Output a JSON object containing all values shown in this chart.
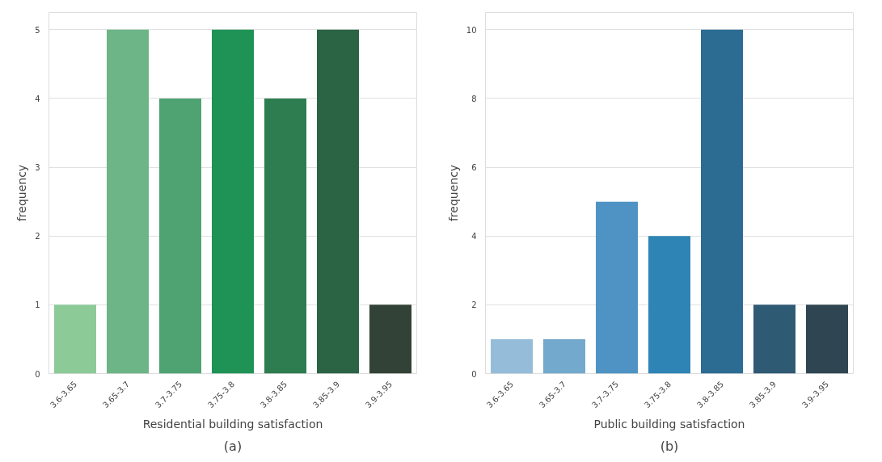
{
  "chart_data": [
    {
      "type": "bar",
      "xlabel": "Residential building satisfaction",
      "ylabel": "frequency",
      "categories": [
        "3.6-3.65",
        "3.65-3.7",
        "3.7-3.75",
        "3.75-3.8",
        "3.8-3.85",
        "3.85-3.9",
        "3.9-3.95"
      ],
      "values": [
        1,
        5,
        4,
        5,
        4,
        5,
        1
      ],
      "colors": [
        "#8ccb98",
        "#6db486",
        "#4fa271",
        "#1f9255",
        "#2e7d50",
        "#2a6445",
        "#334236"
      ],
      "ylim": [
        0,
        5.25
      ],
      "yticks": [
        0,
        1,
        2,
        3,
        4,
        5
      ],
      "grid": "y",
      "annotations": [
        "(a)"
      ]
    },
    {
      "type": "bar",
      "xlabel": "Public building satisfaction",
      "ylabel": "frequency",
      "categories": [
        "3.6-3.65",
        "3.65-3.7",
        "3.7-3.75",
        "3.75-3.8",
        "3.8-3.85",
        "3.85-3.9",
        "3.9-3.95"
      ],
      "values": [
        1,
        1,
        5,
        4,
        10,
        2,
        2
      ],
      "colors": [
        "#95bdd9",
        "#73a9cc",
        "#4e93c3",
        "#2e84b5",
        "#2c6c93",
        "#2f5a74",
        "#2f4652"
      ],
      "ylim": [
        0,
        10.5
      ],
      "yticks": [
        0,
        2,
        4,
        6,
        8,
        10
      ],
      "grid": "y",
      "annotations": [
        "(b)"
      ]
    }
  ]
}
